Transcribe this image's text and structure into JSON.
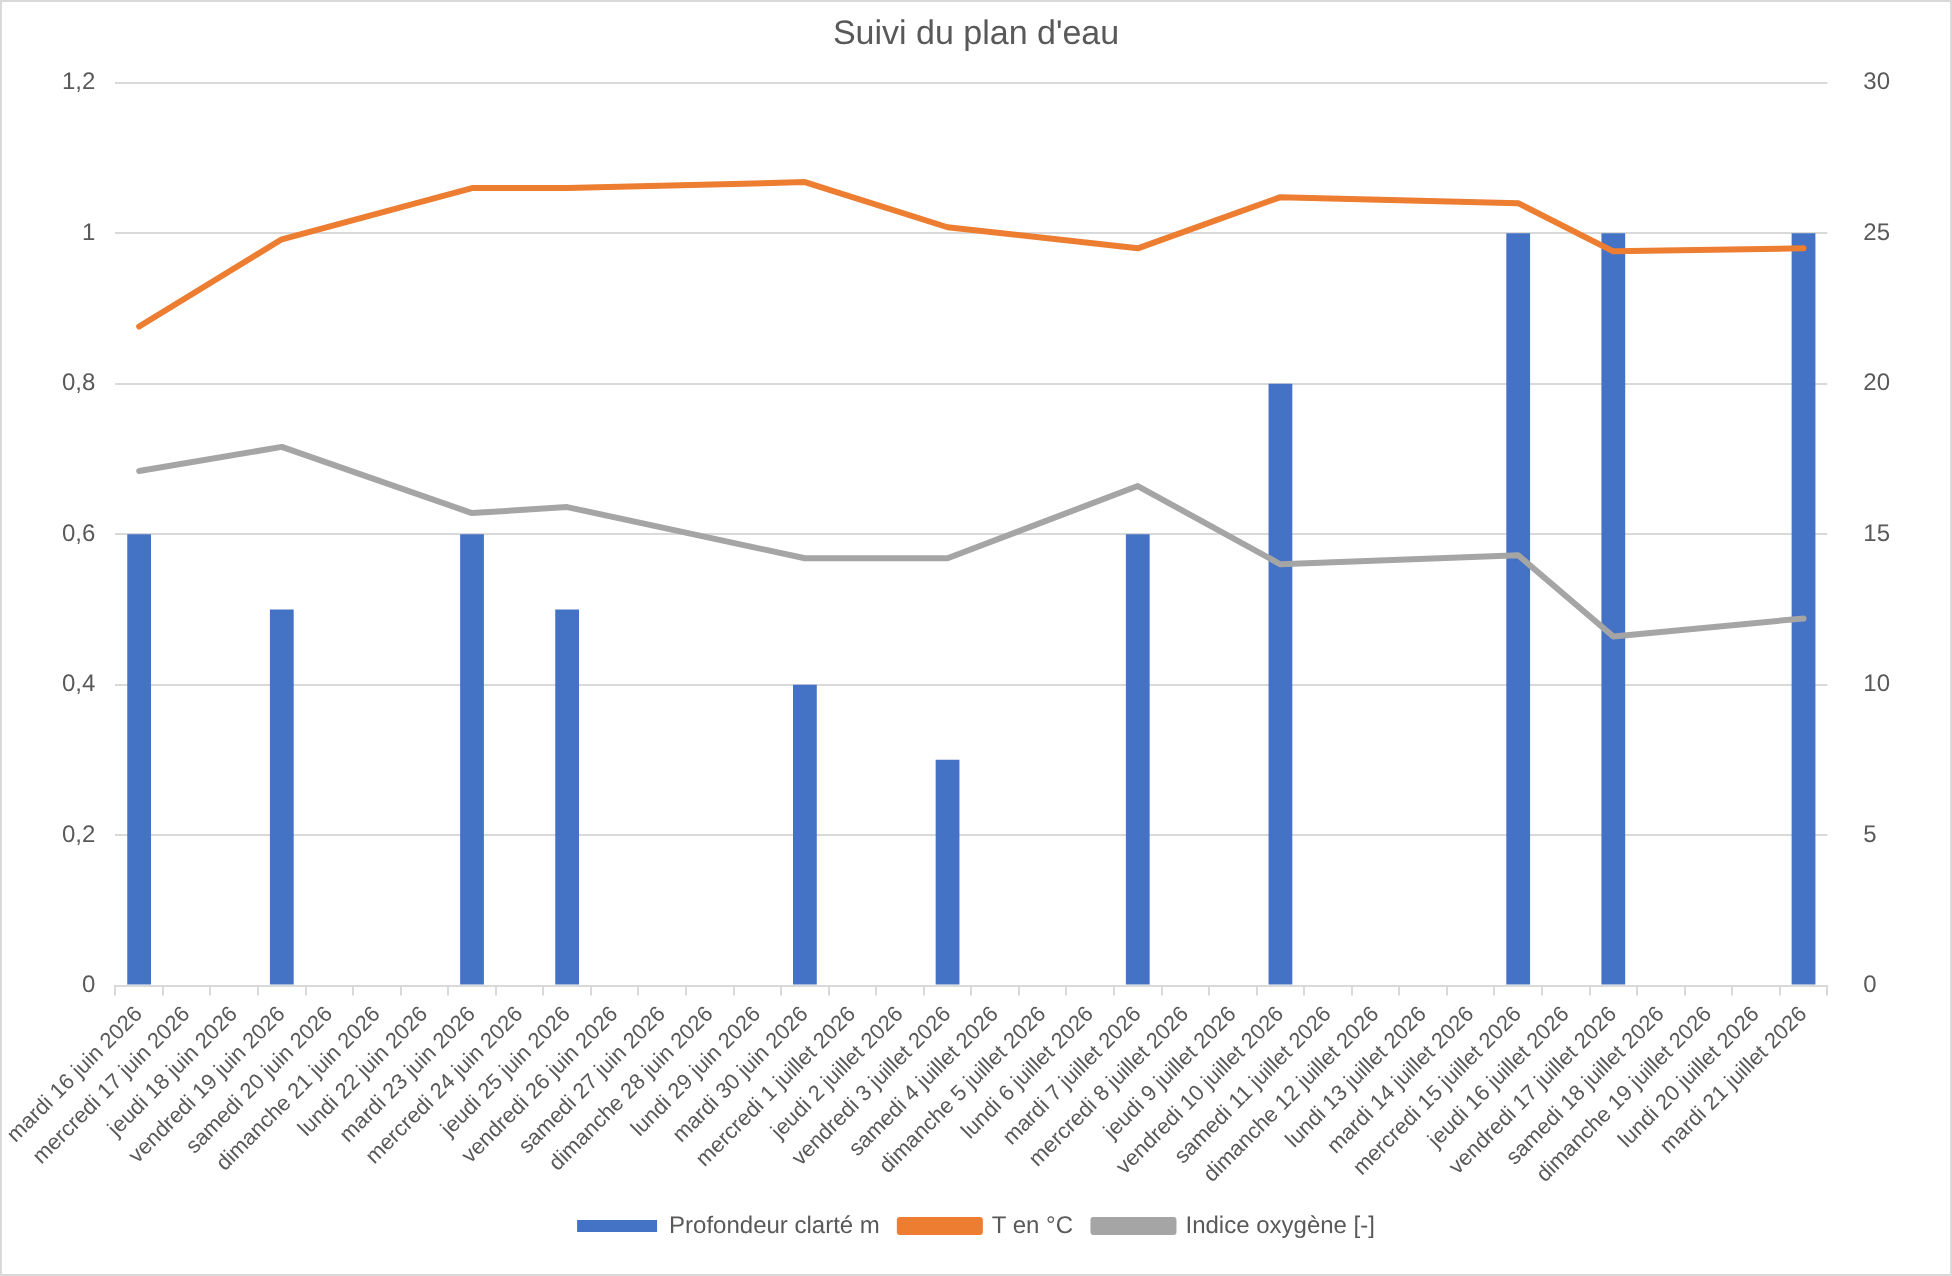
{
  "chart_data": {
    "type": "bar",
    "title": "Suivi du plan d'eau",
    "categories": [
      "mardi 16 juin 2026",
      "mercredi 17 juin 2026",
      "jeudi 18 juin 2026",
      "vendredi 19 juin 2026",
      "samedi 20 juin 2026",
      "dimanche 21 juin 2026",
      "lundi 22 juin 2026",
      "mardi 23 juin 2026",
      "mercredi 24 juin 2026",
      "jeudi 25 juin 2026",
      "vendredi 26 juin 2026",
      "samedi 27 juin 2026",
      "dimanche 28 juin 2026",
      "lundi 29 juin 2026",
      "mardi 30 juin 2026",
      "mercredi 1 juillet 2026",
      "jeudi 2 juillet 2026",
      "vendredi 3 juillet 2026",
      "samedi 4 juillet 2026",
      "dimanche 5 juillet 2026",
      "lundi 6 juillet 2026",
      "mardi 7 juillet 2026",
      "mercredi 8 juillet 2026",
      "jeudi 9 juillet 2026",
      "vendredi 10 juillet 2026",
      "samedi 11 juillet 2026",
      "dimanche 12 juillet 2026",
      "lundi 13 juillet 2026",
      "mardi 14 juillet 2026",
      "mercredi 15 juillet 2026",
      "jeudi 16 juillet 2026",
      "vendredi 17 juillet 2026",
      "samedi 18 juillet 2026",
      "dimanche 19 juillet 2026",
      "lundi 20 juillet 2026",
      "mardi 21 juillet 2026"
    ],
    "series": [
      {
        "name": "Profondeur clarté m",
        "color": "#4472c4",
        "values": [
          0.6,
          null,
          null,
          0.5,
          null,
          null,
          null,
          0.6,
          null,
          0.5,
          null,
          null,
          null,
          null,
          0.4,
          null,
          null,
          0.3,
          null,
          null,
          null,
          0.6,
          null,
          null,
          0.8,
          null,
          null,
          null,
          null,
          1.0,
          null,
          1.0,
          null,
          null,
          null,
          1.0
        ]
      },
      {
        "name": "T en °C",
        "type": "line",
        "axis": "y2",
        "color": "#ed7d31",
        "values": [
          21.9,
          null,
          null,
          24.8,
          null,
          null,
          null,
          26.5,
          null,
          26.5,
          null,
          null,
          null,
          null,
          26.7,
          null,
          null,
          25.2,
          null,
          null,
          null,
          24.5,
          null,
          null,
          26.2,
          null,
          null,
          null,
          null,
          26.0,
          null,
          24.4,
          null,
          null,
          null,
          24.5
        ]
      },
      {
        "name": "Indice oxygène [-]",
        "type": "line",
        "axis": "y2",
        "color": "#a5a5a5",
        "values": [
          17.1,
          null,
          null,
          17.9,
          null,
          null,
          null,
          15.7,
          null,
          15.9,
          null,
          null,
          null,
          null,
          14.2,
          null,
          null,
          14.2,
          null,
          null,
          null,
          16.6,
          null,
          null,
          14.0,
          null,
          null,
          null,
          null,
          14.3,
          null,
          11.6,
          null,
          null,
          null,
          12.2
        ]
      }
    ],
    "ylim": [
      0,
      1.2
    ],
    "yticks": [
      0,
      {
        "value": 0.2,
        "label": "0,2"
      },
      {
        "value": 0.4,
        "label": "0,4"
      },
      {
        "value": 0.6,
        "label": "0,6"
      },
      {
        "value": 0.8,
        "label": "0,8"
      },
      1,
      {
        "value": 1.2,
        "label": "1,2"
      }
    ],
    "y2lim": [
      0,
      30
    ],
    "y2ticks": [
      0,
      5,
      10,
      15,
      20,
      25,
      30
    ],
    "grid": "y",
    "legend": "bottom",
    "marker": "none",
    "line_style": "solid"
  }
}
